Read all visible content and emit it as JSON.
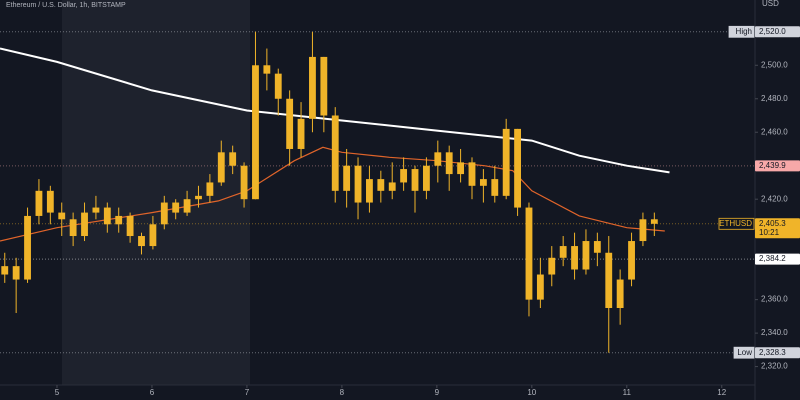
{
  "chart_data": {
    "type": "candlestick",
    "title": "Ethereum / U.S. Dollar, 1h, BITSTAMP",
    "currency": "USD",
    "color": "#f0b429",
    "x": [
      4.45,
      4.57,
      4.69,
      4.81,
      4.93,
      5.05,
      5.17,
      5.29,
      5.41,
      5.53,
      5.65,
      5.77,
      5.89,
      6.01,
      6.13,
      6.25,
      6.37,
      6.49,
      6.61,
      6.73,
      6.85,
      6.97,
      7.09,
      7.21,
      7.33,
      7.45,
      7.57,
      7.69,
      7.81,
      7.93,
      8.05,
      8.17,
      8.29,
      8.41,
      8.53,
      8.65,
      8.77,
      8.89,
      9.01,
      9.13,
      9.25,
      9.37,
      9.49,
      9.61,
      9.73,
      9.85,
      9.97,
      10.09,
      10.21,
      10.33,
      10.45,
      10.57,
      10.69,
      10.81,
      10.93,
      11.05,
      11.17,
      11.29
    ],
    "open": [
      2375,
      2380,
      2372,
      2410,
      2425,
      2412,
      2408,
      2398,
      2412,
      2415,
      2405,
      2410,
      2398,
      2392,
      2405,
      2418,
      2412,
      2420,
      2422,
      2430,
      2448,
      2440,
      2420,
      2500,
      2495,
      2480,
      2450,
      2468,
      2505,
      2470,
      2425,
      2440,
      2418,
      2432,
      2425,
      2430,
      2438,
      2425,
      2440,
      2448,
      2435,
      2442,
      2428,
      2432,
      2422,
      2462,
      2415,
      2360,
      2375,
      2385,
      2392,
      2378,
      2395,
      2388,
      2355,
      2372,
      2395,
      2408
    ],
    "high": [
      2388,
      2385,
      2415,
      2432,
      2428,
      2418,
      2412,
      2418,
      2422,
      2418,
      2415,
      2412,
      2400,
      2410,
      2422,
      2420,
      2425,
      2428,
      2435,
      2455,
      2452,
      2442,
      2520,
      2510,
      2498,
      2485,
      2478,
      2520,
      2505,
      2475,
      2450,
      2445,
      2440,
      2437,
      2442,
      2445,
      2440,
      2445,
      2455,
      2452,
      2450,
      2445,
      2438,
      2440,
      2468,
      2462,
      2418,
      2385,
      2392,
      2398,
      2400,
      2402,
      2400,
      2398,
      2378,
      2400,
      2412,
      2412
    ],
    "low": [
      2370,
      2352,
      2370,
      2405,
      2405,
      2398,
      2392,
      2395,
      2408,
      2400,
      2400,
      2394,
      2387,
      2390,
      2402,
      2408,
      2410,
      2415,
      2418,
      2428,
      2435,
      2415,
      2420,
      2485,
      2470,
      2440,
      2445,
      2460,
      2460,
      2418,
      2415,
      2408,
      2412,
      2418,
      2420,
      2425,
      2412,
      2420,
      2430,
      2425,
      2430,
      2420,
      2418,
      2418,
      2420,
      2410,
      2350,
      2355,
      2368,
      2380,
      2372,
      2375,
      2380,
      2328.3,
      2345,
      2368,
      2392,
      2398
    ],
    "close": [
      2380,
      2372,
      2410,
      2425,
      2412,
      2408,
      2398,
      2412,
      2415,
      2405,
      2410,
      2398,
      2392,
      2405,
      2418,
      2412,
      2420,
      2422,
      2430,
      2448,
      2440,
      2420,
      2500,
      2495,
      2480,
      2450,
      2468,
      2505,
      2470,
      2425,
      2440,
      2418,
      2432,
      2425,
      2430,
      2438,
      2425,
      2440,
      2448,
      2435,
      2442,
      2428,
      2432,
      2422,
      2462,
      2415,
      2360,
      2375,
      2385,
      2392,
      2378,
      2395,
      2388,
      2355,
      2372,
      2395,
      2408,
      2405.3
    ],
    "lines": [
      {
        "color": "#ffffff",
        "x": [
          4.4,
          5,
          6,
          7,
          7.5,
          8,
          9,
          10,
          10.5,
          11,
          11.45
        ],
        "values": [
          2510,
          2502,
          2485,
          2473,
          2470,
          2467,
          2461,
          2455,
          2446,
          2440,
          2436
        ]
      },
      {
        "color": "#e0642a",
        "x": [
          4.4,
          5,
          6,
          6.7,
          7,
          7.5,
          7.8,
          8,
          8.5,
          9,
          9.5,
          9.8,
          10,
          10.5,
          11,
          11.4
        ],
        "values": [
          2395,
          2403,
          2412,
          2419,
          2425,
          2443,
          2451,
          2448,
          2445,
          2443,
          2440,
          2437,
          2425,
          2410,
          2403,
          2401
        ]
      }
    ],
    "price_labels": [
      {
        "name": "High",
        "level": {
          "value": 2520,
          "label": "2,520.0"
        },
        "color": "#d1d4dc"
      },
      {
        "name": "ETHUSD",
        "level": {
          "value": 2405.3,
          "label": "2,405.3"
        },
        "timer": "10:21",
        "color": "#f0b429"
      },
      {
        "level": {
          "value": 2439.9,
          "label": "2,439.9"
        },
        "color": "#f7a8a8"
      },
      {
        "level": {
          "value": 2384.2,
          "label": "2,384.2"
        },
        "color": "#ffffff"
      },
      {
        "name": "Low",
        "level": {
          "value": 2328.3,
          "label": "2,328.3"
        },
        "color": "#d1d4dc"
      }
    ],
    "xlim": [
      4.4,
      12.35
    ],
    "xticks": [
      5,
      6,
      7,
      8,
      9,
      10,
      11,
      12
    ],
    "ylim": [
      2309,
      2539
    ],
    "yticks": [
      {
        "value": 2320,
        "label": "2,320.0"
      },
      {
        "value": 2340,
        "label": "2,340.0"
      },
      {
        "value": 2360,
        "label": "2,360.0"
      },
      {
        "value": 2420,
        "label": "2,420.0"
      },
      {
        "value": 2460,
        "label": "2,460.0"
      },
      {
        "value": 2480,
        "label": "2,480.0"
      },
      {
        "value": 2500,
        "label": "2,500.0"
      }
    ]
  }
}
